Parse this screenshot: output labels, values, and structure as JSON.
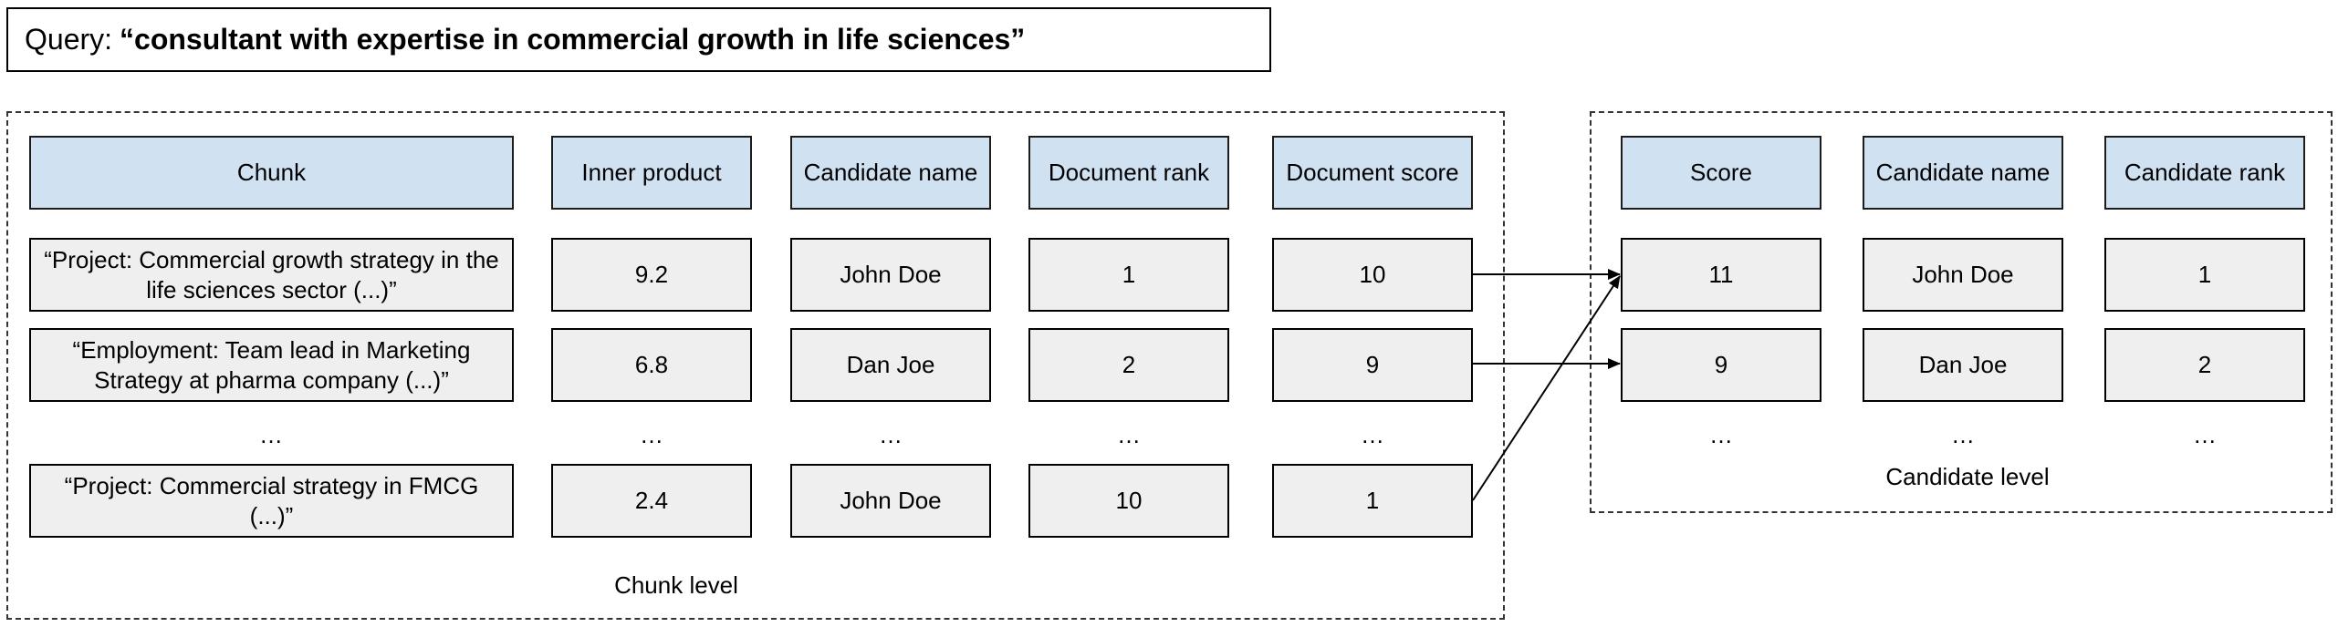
{
  "query": {
    "prefix": "Query:",
    "text": "“consultant with expertise in commercial growth in life sciences”"
  },
  "chunk_level": {
    "label": "Chunk level",
    "headers": [
      "Chunk",
      "Inner product",
      "Candidate name",
      "Document rank",
      "Document score"
    ],
    "rows": [
      [
        "“Project: Commercial growth strategy in the life sciences sector (...)”",
        "9.2",
        "John Doe",
        "1",
        "10"
      ],
      [
        "“Employment: Team lead in Marketing Strategy at pharma company (...)”",
        "6.8",
        "Dan Joe",
        "2",
        "9"
      ],
      [
        "“Project: Commercial strategy in FMCG (...)”",
        "2.4",
        "John Doe",
        "10",
        "1"
      ]
    ],
    "ellipsis": "…"
  },
  "candidate_level": {
    "label": "Candidate level",
    "headers": [
      "Score",
      "Candidate name",
      "Candidate rank"
    ],
    "rows": [
      [
        "11",
        "John Doe",
        "1"
      ],
      [
        "9",
        "Dan Joe",
        "2"
      ]
    ],
    "ellipsis": "…"
  }
}
